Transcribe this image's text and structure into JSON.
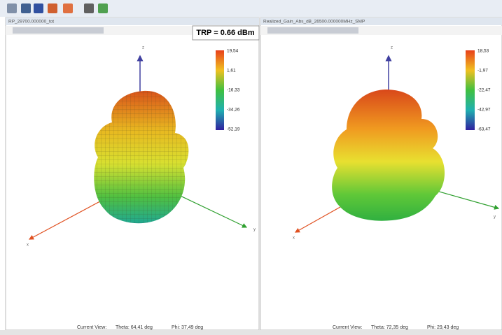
{
  "panels": [
    {
      "title": "RP_29700.000000_tot",
      "badge": "TRP = 0.66 dBm",
      "colorbar": [
        "19,54",
        "1,61",
        "-16,33",
        "-34,26",
        "-52,19"
      ],
      "axes": [
        "z",
        "y",
        "x"
      ],
      "footer": {
        "label": "Current View:",
        "theta": "Theta: 64,41 deg",
        "phi": "Phi: 37,49 deg"
      }
    },
    {
      "title": "Realized_Gain_Abs_dB_26500.000000MHz_SMP",
      "colorbar": [
        "18,53",
        "-1,97",
        "-22,47",
        "-42,97",
        "-63,47"
      ],
      "axes": [
        "z",
        "y",
        "x"
      ],
      "footer": {
        "label": "Current View:",
        "theta": "Theta: 72,35 deg",
        "phi": "Phi: 29,43 deg"
      }
    }
  ]
}
